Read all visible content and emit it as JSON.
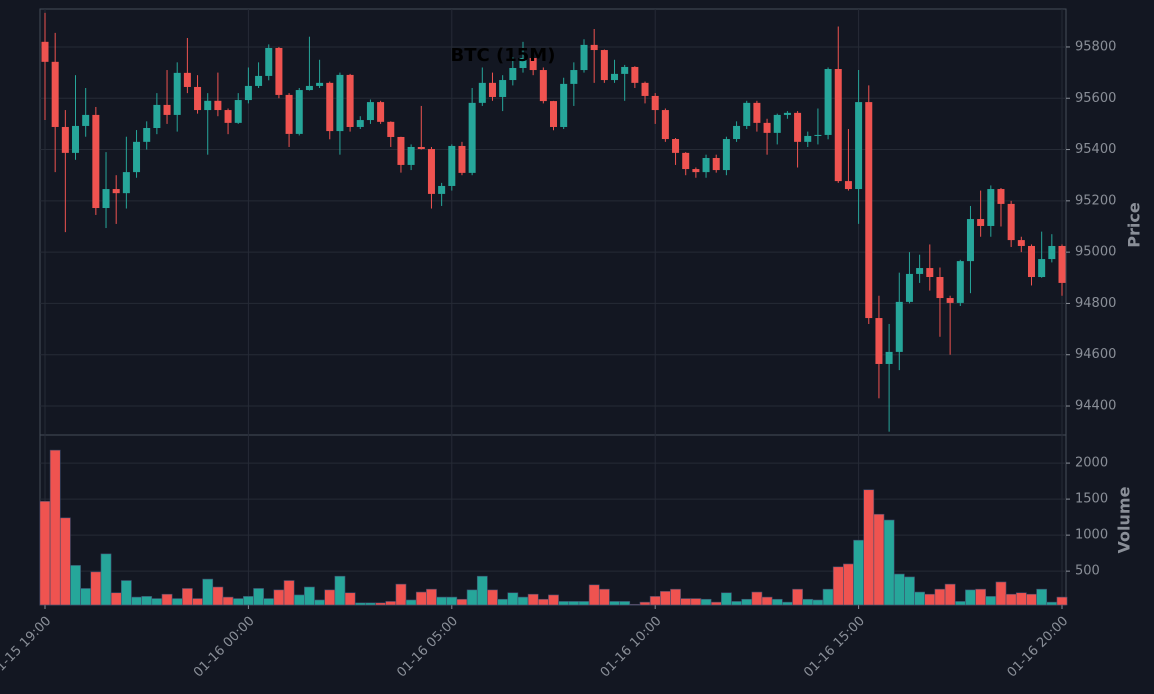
{
  "chart_data": {
    "type": "candlestick",
    "title": "BTC (15M)",
    "ylabel": "Price",
    "volume_label": "Volume",
    "categories": [
      "01-15 19:00",
      null,
      null,
      null,
      null,
      null,
      null,
      null,
      null,
      null,
      null,
      null,
      null,
      null,
      null,
      null,
      null,
      null,
      null,
      null,
      "01-16 00:00",
      null,
      null,
      null,
      null,
      null,
      null,
      null,
      null,
      null,
      null,
      null,
      null,
      null,
      null,
      null,
      null,
      null,
      null,
      null,
      "01-16 05:00",
      null,
      null,
      null,
      null,
      null,
      null,
      null,
      null,
      null,
      null,
      null,
      null,
      null,
      null,
      null,
      null,
      null,
      null,
      null,
      "01-16 10:00",
      null,
      null,
      null,
      null,
      null,
      null,
      null,
      null,
      null,
      null,
      null,
      null,
      null,
      null,
      null,
      null,
      null,
      null,
      null,
      "01-16 15:00",
      null,
      null,
      null,
      null,
      null,
      null,
      null,
      null,
      null,
      null,
      null,
      null,
      null,
      null,
      null,
      null,
      null,
      null,
      null,
      "01-16 20:00"
    ],
    "open": [
      95820,
      95742,
      95488,
      95387,
      95492,
      95535,
      95172,
      95246,
      95230,
      95312,
      95430,
      95484,
      95574,
      95535,
      95699,
      95644,
      95554,
      95590,
      95554,
      95504,
      95593,
      95648,
      95687,
      95796,
      95613,
      95461,
      95632,
      95648,
      95660,
      95472,
      95691,
      95488,
      95515,
      95585,
      95508,
      95449,
      95340,
      95410,
      95402,
      95227,
      95258,
      95414,
      95309,
      95582,
      95660,
      95605,
      95671,
      95718,
      95757,
      95710,
      95589,
      95488,
      95656,
      95710,
      95808,
      95788,
      95671,
      95695,
      95722,
      95660,
      95609,
      95554,
      95441,
      95387,
      95324,
      95312,
      95367,
      95320,
      95441,
      95492,
      95582,
      95504,
      95465,
      95535,
      95543,
      95430,
      95453,
      95457,
      95714,
      95277,
      95246,
      95585,
      94743,
      94564,
      94611,
      94806,
      94915,
      94938,
      94903,
      94821,
      94802,
      94965,
      95129,
      95102,
      95246,
      95188,
      95047,
      95024,
      94903,
      94973,
      95024
    ],
    "high": [
      95933,
      95855,
      95554,
      95690,
      95640,
      95566,
      95390,
      95300,
      95450,
      95476,
      95510,
      95620,
      95710,
      95740,
      95835,
      95690,
      95620,
      95700,
      95560,
      95620,
      95720,
      95740,
      95810,
      95800,
      95620,
      95640,
      95840,
      95750,
      95665,
      95700,
      95695,
      95530,
      95595,
      95590,
      95510,
      95450,
      95420,
      95570,
      95410,
      95270,
      95420,
      95430,
      95640,
      95720,
      95700,
      95690,
      95760,
      95820,
      95790,
      95720,
      95590,
      95680,
      95740,
      95830,
      95870,
      95790,
      95750,
      95730,
      95725,
      95665,
      95620,
      95560,
      95445,
      95390,
      95330,
      95380,
      95380,
      95450,
      95510,
      95590,
      95590,
      95520,
      95540,
      95550,
      95550,
      95470,
      95560,
      95720,
      95880,
      95480,
      95710,
      95650,
      94830,
      94720,
      94920,
      95000,
      94990,
      95030,
      94940,
      94830,
      94970,
      95180,
      95240,
      95260,
      95250,
      95200,
      95060,
      95030,
      95080,
      95070,
      95030
    ],
    "low": [
      95515,
      95312,
      95078,
      95360,
      95450,
      95145,
      95094,
      95110,
      95170,
      95290,
      95400,
      95460,
      95500,
      95470,
      95620,
      95540,
      95380,
      95530,
      95460,
      95500,
      95580,
      95640,
      95670,
      95600,
      95410,
      95455,
      95630,
      95640,
      95440,
      95380,
      95470,
      95480,
      95500,
      95500,
      95410,
      95310,
      95320,
      95400,
      95170,
      95180,
      95240,
      95300,
      95300,
      95570,
      95590,
      95550,
      95650,
      95700,
      95690,
      95580,
      95475,
      95480,
      95570,
      95700,
      95660,
      95660,
      95660,
      95590,
      95640,
      95580,
      95500,
      95430,
      95340,
      95300,
      95290,
      95290,
      95310,
      95300,
      95430,
      95480,
      95470,
      95380,
      95420,
      95520,
      95330,
      95410,
      95420,
      95440,
      95270,
      95240,
      95110,
      94720,
      94430,
      94300,
      94540,
      94800,
      94880,
      94850,
      94670,
      94600,
      94790,
      94840,
      95060,
      95060,
      95100,
      95020,
      95000,
      94870,
      94900,
      94960,
      94830
    ],
    "close": [
      95742,
      95488,
      95387,
      95492,
      95535,
      95172,
      95246,
      95230,
      95312,
      95430,
      95484,
      95574,
      95535,
      95699,
      95644,
      95554,
      95590,
      95554,
      95504,
      95593,
      95648,
      95687,
      95796,
      95613,
      95461,
      95632,
      95648,
      95660,
      95472,
      95691,
      95488,
      95515,
      95585,
      95508,
      95449,
      95340,
      95410,
      95402,
      95227,
      95258,
      95414,
      95309,
      95582,
      95660,
      95605,
      95671,
      95718,
      95757,
      95710,
      95589,
      95488,
      95656,
      95710,
      95808,
      95788,
      95671,
      95695,
      95722,
      95660,
      95609,
      95554,
      95441,
      95387,
      95324,
      95312,
      95367,
      95320,
      95441,
      95492,
      95582,
      95504,
      95465,
      95535,
      95543,
      95430,
      95453,
      95457,
      95714,
      95277,
      95246,
      95585,
      94743,
      94564,
      94611,
      94806,
      94915,
      94938,
      94903,
      94821,
      94802,
      94965,
      95129,
      95102,
      95246,
      95188,
      95047,
      95024,
      94903,
      94973,
      95024,
      94880
    ],
    "volume": [
      1470,
      2180,
      1240,
      580,
      260,
      490,
      740,
      200,
      370,
      140,
      150,
      120,
      180,
      120,
      260,
      120,
      390,
      280,
      140,
      120,
      150,
      260,
      120,
      240,
      370,
      170,
      280,
      100,
      240,
      430,
      200,
      60,
      60,
      60,
      80,
      320,
      100,
      210,
      250,
      140,
      140,
      110,
      240,
      430,
      240,
      110,
      200,
      140,
      180,
      110,
      170,
      80,
      80,
      80,
      310,
      250,
      80,
      80,
      40,
      70,
      150,
      220,
      250,
      120,
      120,
      110,
      70,
      200,
      80,
      110,
      210,
      140,
      110,
      70,
      250,
      110,
      100,
      250,
      560,
      600,
      930,
      1630,
      1290,
      1210,
      460,
      420,
      210,
      180,
      250,
      320,
      80,
      240,
      250,
      150,
      350,
      180,
      200,
      180,
      250,
      70,
      140
    ],
    "ylim": [
      94287,
      95948
    ],
    "yticks": [
      94400,
      94600,
      94800,
      95000,
      95200,
      95400,
      95600,
      95800
    ],
    "volume_ylim": [
      30,
      2390
    ],
    "volume_yticks": [
      500,
      1000,
      1500,
      2000
    ],
    "up_color": "#26a69a",
    "down_color": "#ef5350",
    "grid": true
  }
}
